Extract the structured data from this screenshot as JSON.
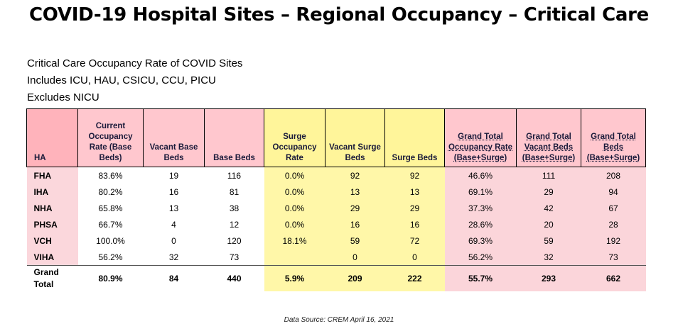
{
  "title": "COVID-19 Hospital Sites – Regional Occupancy – Critical Care",
  "notes": [
    "Critical Care Occupancy Rate of COVID Sites",
    "Includes ICU, HAU, CSICU, CCU, PICU",
    "Excludes NICU"
  ],
  "columns": [
    "HA",
    "Current Occupancy Rate (Base Beds)",
    "Vacant Base Beds",
    "Base Beds",
    "Surge Occupancy Rate",
    "Vacant Surge Beds",
    "Surge Beds",
    "Grand Total Occupancy Rate (Base+Surge)",
    "Grand Total Vacant Beds (Base+Surge)",
    "Grand Total Beds (Base+Surge)"
  ],
  "rows": [
    [
      "FHA",
      "83.6%",
      "19",
      "116",
      "0.0%",
      "92",
      "92",
      "46.6%",
      "111",
      "208"
    ],
    [
      "IHA",
      "80.2%",
      "16",
      "81",
      "0.0%",
      "13",
      "13",
      "69.1%",
      "29",
      "94"
    ],
    [
      "NHA",
      "65.8%",
      "13",
      "38",
      "0.0%",
      "29",
      "29",
      "37.3%",
      "42",
      "67"
    ],
    [
      "PHSA",
      "66.7%",
      "4",
      "12",
      "0.0%",
      "16",
      "16",
      "28.6%",
      "20",
      "28"
    ],
    [
      "VCH",
      "100.0%",
      "0",
      "120",
      "18.1%",
      "59",
      "72",
      "69.3%",
      "59",
      "192"
    ],
    [
      "VIHA",
      "56.2%",
      "32",
      "73",
      "",
      "0",
      "0",
      "56.2%",
      "32",
      "73"
    ]
  ],
  "total": {
    "label_line1": "Grand",
    "label_line2": "Total",
    "values": [
      "80.9%",
      "84",
      "440",
      "5.9%",
      "209",
      "222",
      "55.7%",
      "293",
      "662"
    ]
  },
  "source": "Data Source: CREM April 16, 2021",
  "colors": {
    "ha_header": "#ffb3bb",
    "base_header": "#ffc7ce",
    "surge_header": "#fff59a",
    "grand_header": "#ffc7ce"
  }
}
